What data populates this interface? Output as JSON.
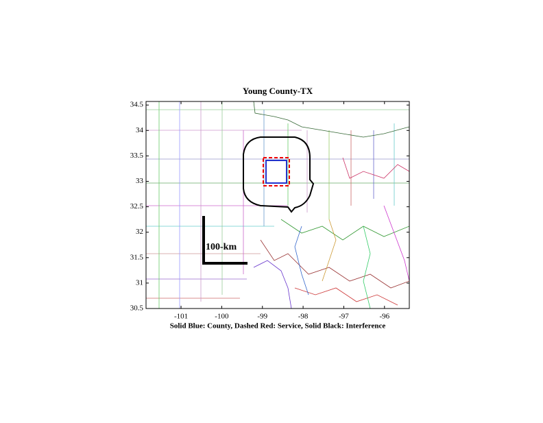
{
  "chart_data": {
    "type": "map",
    "title": "Young County-TX",
    "xlabel": "Solid Blue: County, Dashed Red: Service, Solid Black: Interference",
    "annotation": "100-km",
    "xlim": [
      -101.86,
      -95.39
    ],
    "ylim": [
      30.5,
      34.57
    ],
    "xticks": [
      -101,
      -100,
      -99,
      -98,
      -97,
      -96
    ],
    "yticks": [
      30.5,
      31,
      31.5,
      32,
      32.5,
      33,
      33.5,
      34,
      34.5
    ]
  }
}
